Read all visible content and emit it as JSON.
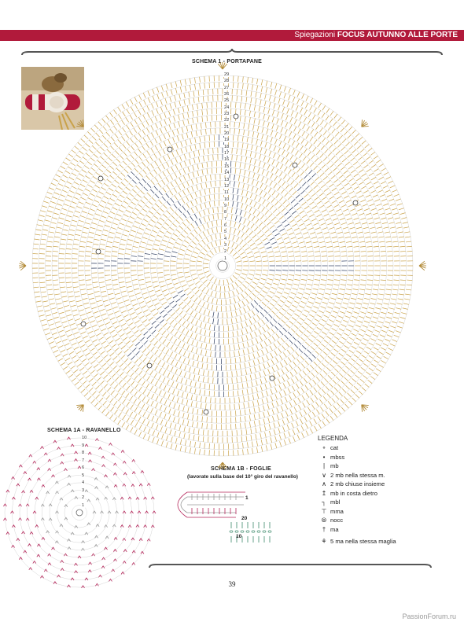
{
  "header": {
    "prefix": "Spiegazioni",
    "title": "FOCUS AUTUNNO ALLE PORTE"
  },
  "schema1": {
    "title": "SCHEMA 1 - PORTAPANE",
    "round_numbers": [
      "29",
      "28",
      "27",
      "26",
      "25",
      "24",
      "23",
      "22",
      "21",
      "20",
      "19",
      "18",
      "17",
      "16",
      "15",
      "14",
      "13",
      "12",
      "11",
      "10",
      "9",
      "8",
      "7",
      "6",
      "5",
      "4",
      "3",
      "2",
      "1"
    ]
  },
  "schema1a": {
    "title": "SCHEMA 1A - RAVANELLO",
    "round_numbers": [
      "10",
      "9",
      "8",
      "7",
      "6",
      "5",
      "4",
      "3",
      "2",
      "1"
    ]
  },
  "schema1b": {
    "title": "SCHEMA 1B - FOGLIE",
    "subtitle": "(lavorate sulla base del 10° giro del ravanello)",
    "numbers": {
      "top": "1",
      "mid": "20",
      "bottom": "10"
    }
  },
  "legend": {
    "title": "LEGENDA",
    "items": [
      {
        "icon": "cat-symbol",
        "label": "cat"
      },
      {
        "icon": "mbss-symbol",
        "label": "mbss"
      },
      {
        "icon": "mb-symbol",
        "label": "mb"
      },
      {
        "icon": "two-mb-same-stitch-symbol",
        "label": "2 mb nella stessa m."
      },
      {
        "icon": "two-mb-together-symbol",
        "label": "2 mb chiuse insieme"
      },
      {
        "icon": "mb-back-loop-symbol",
        "label": "mb in costa dietro"
      },
      {
        "icon": "mbl-symbol",
        "label": "mbl"
      },
      {
        "icon": "mma-symbol",
        "label": "mma"
      },
      {
        "icon": "nocc-symbol",
        "label": "nocc"
      },
      {
        "icon": "ma-symbol",
        "label": "ma"
      },
      {
        "icon": "five-ma-same-stitch-symbol",
        "label": "5 ma nella stessa maglia"
      }
    ]
  },
  "page_number": "39",
  "watermark": "PassionForum.ru",
  "colors": {
    "accent": "#b11a3b",
    "gold": "#c9a24a",
    "navy": "#2b3a5c",
    "grey": "#9a9a9a",
    "magenta": "#b5265a"
  }
}
